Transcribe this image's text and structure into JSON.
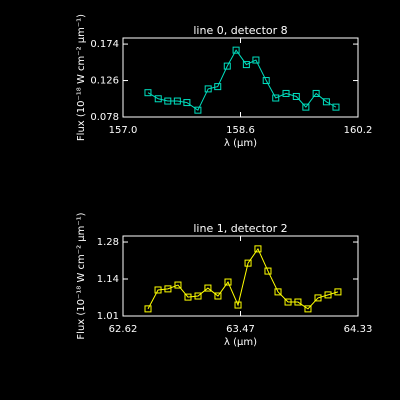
{
  "chart_data": [
    {
      "type": "line",
      "title": "line 0, detector 8",
      "xlabel": "λ (μm)",
      "ylabel": "Flux (10⁻¹⁸ W cm⁻² μm⁻¹)",
      "color": "#00e0c0",
      "marker": "square",
      "x": [
        157.34,
        157.48,
        157.61,
        157.74,
        157.87,
        158.02,
        158.16,
        158.29,
        158.42,
        158.54,
        158.68,
        158.81,
        158.95,
        159.08,
        159.22,
        159.36,
        159.49,
        159.63,
        159.77,
        159.9
      ],
      "values": [
        0.11,
        0.102,
        0.099,
        0.099,
        0.097,
        0.087,
        0.115,
        0.118,
        0.145,
        0.166,
        0.147,
        0.153,
        0.126,
        0.103,
        0.109,
        0.105,
        0.091,
        0.109,
        0.098,
        0.091
      ],
      "xlim": [
        157.0,
        160.2
      ],
      "xticks": [
        {
          "value": 157.0,
          "label": "157.0"
        },
        158.6,
        {
          "value": 160.2,
          "label": "160.2"
        }
      ],
      "ylim": [
        0.078,
        0.182
      ],
      "yticks": [
        0.078,
        0.126,
        0.174
      ]
    },
    {
      "type": "line",
      "title": "line 1, detector 2",
      "xlabel": "λ (μm)",
      "ylabel": "Flux (10⁻¹⁸ W cm⁻² μm⁻¹)",
      "color": "#ffff00",
      "marker": "square",
      "x": [
        62.802,
        62.875,
        62.947,
        63.02,
        63.093,
        63.166,
        63.238,
        63.311,
        63.384,
        63.457,
        63.53,
        63.602,
        63.675,
        63.748,
        63.821,
        63.893,
        63.966,
        64.039,
        64.112,
        64.184
      ],
      "values": [
        1.036,
        1.105,
        1.109,
        1.123,
        1.079,
        1.083,
        1.112,
        1.083,
        1.134,
        1.05,
        1.203,
        1.255,
        1.174,
        1.098,
        1.061,
        1.061,
        1.036,
        1.076,
        1.087,
        1.098
      ],
      "xlim": [
        62.62,
        64.33
      ],
      "xticks": [
        62.62,
        {
          "value": 63.475,
          "label": "63.47"
        },
        64.33
      ],
      "ylim": [
        1.01,
        1.302
      ],
      "yticks": [
        1.01,
        {
          "value": 1.145,
          "label": "1.14"
        },
        1.28
      ]
    }
  ]
}
